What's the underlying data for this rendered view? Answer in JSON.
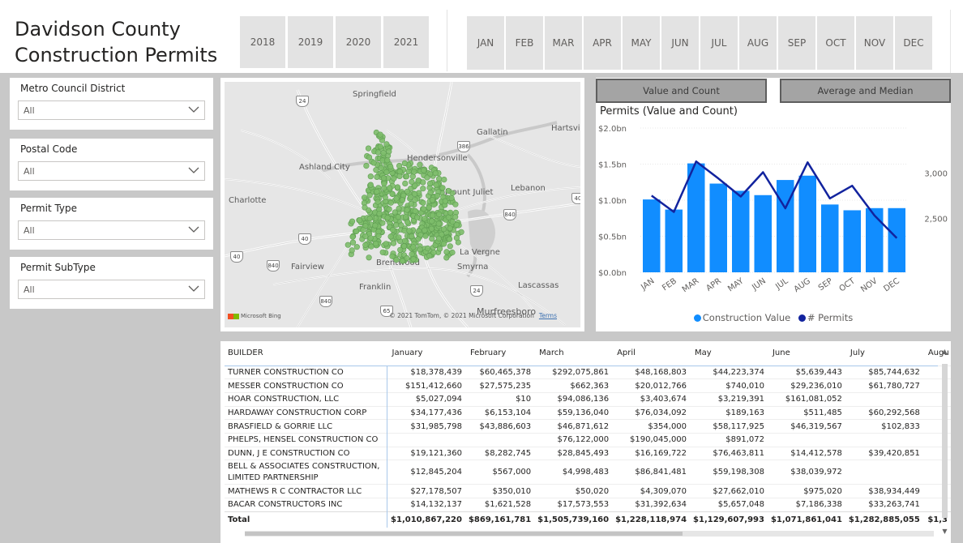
{
  "header": {
    "title_line1": "Davidson County",
    "title_line2": "Construction Permits",
    "years": [
      "2018",
      "2019",
      "2020",
      "2021"
    ],
    "months": [
      "JAN",
      "FEB",
      "MAR",
      "APR",
      "MAY",
      "JUN",
      "JUL",
      "AUG",
      "SEP",
      "OCT",
      "NOV",
      "DEC"
    ]
  },
  "slicers": [
    {
      "label": "Metro Council District",
      "value": "All"
    },
    {
      "label": "Postal Code",
      "value": "All"
    },
    {
      "label": "Permit Type",
      "value": "All"
    },
    {
      "label": "Permit SubType",
      "value": "All"
    }
  ],
  "map": {
    "cities": [
      "Springfield",
      "Gallatin",
      "Hartsville",
      "Hendersonville",
      "Ashland City",
      "Charlotte",
      "Mount Juliet",
      "Lebanon",
      "Fairview",
      "Brentwood",
      "Smyrna",
      "La Vergne",
      "Franklin",
      "Lascassas",
      "Murfreesboro"
    ],
    "shields": [
      "24",
      "386",
      "40",
      "40",
      "40",
      "840",
      "840",
      "840",
      "24",
      "65",
      "40"
    ],
    "bing_label": "Microsoft Bing",
    "copyright": "© 2021 TomTom, © 2021 Microsoft Corporation",
    "terms": "Terms",
    "point_color": "#7dbd6a"
  },
  "chart_toggle": {
    "value_count": "Value and Count",
    "average_median": "Average and Median"
  },
  "chart_data": {
    "type": "bar",
    "title": "Permits (Value and Count)",
    "categories": [
      "JAN",
      "FEB",
      "MAR",
      "APR",
      "MAY",
      "JUN",
      "JUL",
      "AUG",
      "SEP",
      "OCT",
      "NOV",
      "DEC"
    ],
    "series": [
      {
        "name": "Construction Value",
        "type": "bar",
        "axis": "left",
        "color": "#118dff",
        "values": [
          1.01,
          0.87,
          1.51,
          1.23,
          1.13,
          1.07,
          1.28,
          1.34,
          0.94,
          0.86,
          0.89,
          0.89
        ]
      },
      {
        "name": "# Permits",
        "type": "line",
        "axis": "right",
        "color": "#12239e",
        "values": [
          2750,
          2570,
          3130,
          2940,
          2740,
          3010,
          2610,
          3120,
          2720,
          2860,
          2530,
          2280
        ]
      }
    ],
    "y_left": {
      "min": 0,
      "max": 2.0,
      "ticks": [
        "$0.0bn",
        "$0.5bn",
        "$1.0bn",
        "$1.5bn",
        "$2.0bn"
      ]
    },
    "y_right": {
      "min": 1900,
      "max": 3500,
      "ticks": [
        "2,500",
        "3,000"
      ]
    },
    "grid": true,
    "legend_position": "bottom"
  },
  "table": {
    "columns": [
      "BUILDER",
      "January",
      "February",
      "March",
      "April",
      "May",
      "June",
      "July",
      "Augu"
    ],
    "rows": [
      {
        "builder": "TURNER CONSTRUCTION CO",
        "values": [
          "$18,378,439",
          "$60,465,378",
          "$292,075,861",
          "$48,168,803",
          "$44,223,374",
          "$5,639,443",
          "$85,744,632",
          "$"
        ]
      },
      {
        "builder": "MESSER CONSTRUCTION CO",
        "values": [
          "$151,412,660",
          "$27,575,235",
          "$662,363",
          "$20,012,766",
          "$740,010",
          "$29,236,010",
          "$61,780,727",
          "$"
        ]
      },
      {
        "builder": "HOAR CONSTRUCTION, LLC",
        "values": [
          "$5,027,094",
          "$10",
          "$94,086,136",
          "$3,403,674",
          "$3,219,391",
          "$161,081,052",
          "",
          "$"
        ]
      },
      {
        "builder": "HARDAWAY CONSTRUCTION CORP",
        "values": [
          "$34,177,436",
          "$6,153,104",
          "$59,136,040",
          "$76,034,092",
          "$189,163",
          "$511,485",
          "$60,292,568",
          "$"
        ]
      },
      {
        "builder": "BRASFIELD & GORRIE LLC",
        "values": [
          "$31,985,798",
          "$43,886,603",
          "$46,871,612",
          "$354,000",
          "$58,117,925",
          "$46,319,567",
          "$102,833",
          "$"
        ]
      },
      {
        "builder": "PHELPS, HENSEL CONSTRUCTION CO",
        "values": [
          "",
          "",
          "$76,122,000",
          "$190,045,000",
          "$891,072",
          "",
          "",
          ""
        ]
      },
      {
        "builder": "DUNN, J E CONSTRUCTION CO",
        "values": [
          "$19,121,360",
          "$8,282,745",
          "$28,845,493",
          "$16,169,722",
          "$76,463,811",
          "$14,412,578",
          "$39,420,851",
          "$"
        ]
      },
      {
        "builder": "BELL & ASSOCIATES CONSTRUCTION, LIMITED PARTNERSHIP",
        "values": [
          "$12,845,204",
          "$567,000",
          "$4,998,483",
          "$86,841,481",
          "$59,198,308",
          "$38,039,972",
          "",
          ""
        ]
      },
      {
        "builder": "MATHEWS R C CONTRACTOR LLC",
        "values": [
          "$27,178,507",
          "$350,010",
          "$50,020",
          "$4,309,070",
          "$27,662,010",
          "$975,020",
          "$38,934,449",
          "$"
        ]
      },
      {
        "builder": "BACAR CONSTRUCTORS INC",
        "values": [
          "$14,132,137",
          "$1,621,528",
          "$17,573,553",
          "$31,392,634",
          "$5,657,048",
          "$7,186,338",
          "$33,263,741",
          "$"
        ]
      }
    ],
    "total": {
      "label": "Total",
      "values": [
        "$1,010,867,220",
        "$869,161,781",
        "$1,505,739,160",
        "$1,228,118,974",
        "$1,129,607,993",
        "$1,071,861,041",
        "$1,282,885,055",
        "$1,3"
      ]
    }
  }
}
